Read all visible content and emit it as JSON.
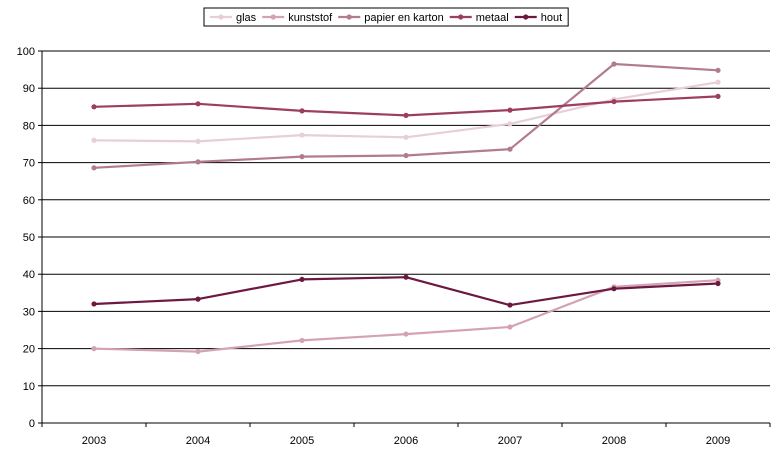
{
  "chart_data": {
    "type": "line",
    "categories": [
      "2003",
      "2004",
      "2005",
      "2006",
      "2007",
      "2008",
      "2009"
    ],
    "ylim": [
      0,
      100
    ],
    "yticks": [
      0,
      10,
      20,
      30,
      40,
      50,
      60,
      70,
      80,
      90,
      100
    ],
    "grid": "horizontal",
    "legend_position": "top",
    "series": [
      {
        "name": "glas",
        "color": "#e6cfd6",
        "values": [
          76.0,
          75.7,
          77.4,
          76.8,
          80.4,
          87.0,
          91.6
        ]
      },
      {
        "name": "kunststof",
        "color": "#d4a3b3",
        "values": [
          20.0,
          19.2,
          22.2,
          23.9,
          25.8,
          36.6,
          38.4
        ]
      },
      {
        "name": "papier en karton",
        "color": "#b27b92",
        "values": [
          68.6,
          70.2,
          71.6,
          71.9,
          73.6,
          96.5,
          94.8
        ]
      },
      {
        "name": "metaal",
        "color": "#9c3d62",
        "values": [
          85.0,
          85.8,
          83.9,
          82.7,
          84.1,
          86.4,
          87.8
        ]
      },
      {
        "name": "hout",
        "color": "#6d1840",
        "values": [
          32.0,
          33.3,
          38.6,
          39.2,
          31.7,
          36.1,
          37.5
        ]
      }
    ]
  }
}
